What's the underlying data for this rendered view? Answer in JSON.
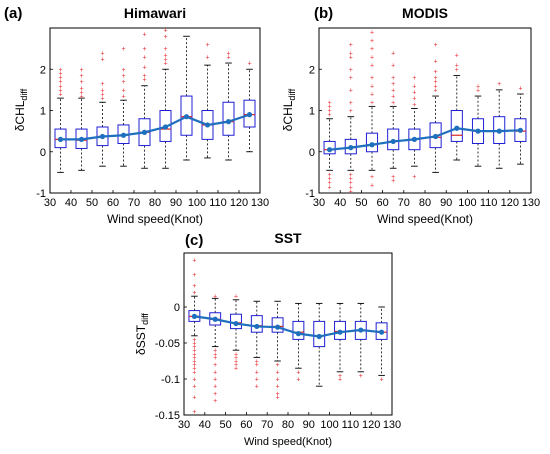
{
  "chart_data": [
    {
      "type": "boxplot",
      "panel_letter": "(a)",
      "title": "Himawari",
      "xlabel": "Wind speed(Knot)",
      "ylabel": {
        "prefix": "δCHL",
        "subscript": "diff"
      },
      "xlim": [
        30,
        130
      ],
      "ylim": [
        -1,
        3
      ],
      "xticks": [
        30,
        40,
        50,
        60,
        70,
        80,
        90,
        100,
        110,
        120,
        130
      ],
      "yticks": [
        -1,
        0,
        1,
        2
      ],
      "colors": {
        "box": "#1f1fd6",
        "median": "#d62728",
        "outlier": "#e8262a",
        "mean_line": "#1f6fbf",
        "whisker": "#000000"
      },
      "boxes": [
        {
          "x": 35,
          "q1": 0.1,
          "median": 0.3,
          "q3": 0.55,
          "low": -0.5,
          "high": 1.3,
          "mean": 0.3,
          "outliers": [
            1.4,
            1.5,
            1.6,
            1.7,
            1.8,
            1.9,
            2.0
          ]
        },
        {
          "x": 45,
          "q1": 0.08,
          "median": 0.28,
          "q3": 0.55,
          "low": -0.45,
          "high": 1.3,
          "mean": 0.3,
          "outliers": [
            1.35,
            1.45,
            1.55,
            1.7,
            1.85,
            2.0
          ]
        },
        {
          "x": 55,
          "q1": 0.15,
          "median": 0.37,
          "q3": 0.6,
          "low": -0.35,
          "high": 1.2,
          "mean": 0.37,
          "outliers": [
            1.3,
            1.4,
            1.5,
            1.65,
            2.25,
            2.4
          ]
        },
        {
          "x": 65,
          "q1": 0.2,
          "median": 0.4,
          "q3": 0.65,
          "low": -0.35,
          "high": 1.25,
          "mean": 0.4,
          "outliers": [
            1.35,
            1.5,
            1.7,
            1.85,
            2.0,
            2.5
          ]
        },
        {
          "x": 75,
          "q1": 0.15,
          "median": 0.47,
          "q3": 0.8,
          "low": -0.4,
          "high": 1.6,
          "mean": 0.47,
          "outliers": [
            1.75,
            1.85,
            2.05,
            2.3,
            2.5,
            2.85
          ]
        },
        {
          "x": 85,
          "q1": 0.25,
          "median": 0.55,
          "q3": 1.0,
          "low": -0.4,
          "high": 2.0,
          "mean": 0.6,
          "outliers": [
            2.15,
            2.25,
            2.35,
            2.5,
            2.8,
            2.95
          ]
        },
        {
          "x": 95,
          "q1": 0.4,
          "median": 0.85,
          "q3": 1.35,
          "low": -0.2,
          "high": 2.8,
          "mean": 0.85,
          "outliers": []
        },
        {
          "x": 105,
          "q1": 0.3,
          "median": 0.65,
          "q3": 1.0,
          "low": -0.15,
          "high": 2.1,
          "mean": 0.65,
          "outliers": [
            2.3,
            2.6
          ]
        },
        {
          "x": 115,
          "q1": 0.4,
          "median": 0.73,
          "q3": 1.2,
          "low": -0.2,
          "high": 2.15,
          "mean": 0.73,
          "outliers": [
            2.3,
            2.4
          ]
        },
        {
          "x": 125,
          "q1": 0.6,
          "median": 0.9,
          "q3": 1.25,
          "low": 0.0,
          "high": 2.0,
          "mean": 0.9,
          "outliers": [
            2.15
          ]
        }
      ]
    },
    {
      "type": "boxplot",
      "panel_letter": "(b)",
      "title": "MODIS",
      "xlabel": "Wind speed(Knot)",
      "ylabel": {
        "prefix": "δCHL",
        "subscript": "diff"
      },
      "xlim": [
        30,
        130
      ],
      "ylim": [
        -1,
        3
      ],
      "xticks": [
        30,
        40,
        50,
        60,
        70,
        80,
        90,
        100,
        110,
        120,
        130
      ],
      "yticks": [
        -1,
        0,
        1,
        2
      ],
      "colors": {
        "box": "#1f1fd6",
        "median": "#d62728",
        "outlier": "#e8262a",
        "mean_line": "#1f6fbf",
        "whisker": "#000000"
      },
      "boxes": [
        {
          "x": 35,
          "q1": -0.05,
          "median": 0.05,
          "q3": 0.25,
          "low": -0.45,
          "high": 0.8,
          "mean": 0.05,
          "outliers": [
            -0.55,
            -0.65,
            -0.75,
            -0.85,
            0.9,
            1.0,
            1.1,
            1.2
          ]
        },
        {
          "x": 45,
          "q1": -0.05,
          "median": 0.1,
          "q3": 0.3,
          "low": -0.45,
          "high": 0.85,
          "mean": 0.1,
          "outliers": [
            -0.55,
            -0.65,
            -0.75,
            -0.85,
            -0.95,
            1.0,
            1.2,
            1.5,
            1.8,
            2.0,
            2.3,
            2.4,
            2.6
          ]
        },
        {
          "x": 55,
          "q1": 0.0,
          "median": 0.17,
          "q3": 0.45,
          "low": -0.45,
          "high": 1.1,
          "mean": 0.17,
          "outliers": [
            -0.6,
            -0.8,
            1.2,
            1.4,
            1.6,
            1.8,
            2.1,
            2.3,
            2.5,
            2.7,
            2.9
          ]
        },
        {
          "x": 65,
          "q1": 0.05,
          "median": 0.25,
          "q3": 0.55,
          "low": -0.4,
          "high": 1.1,
          "mean": 0.25,
          "outliers": [
            -0.6,
            -0.7,
            1.2,
            1.35,
            1.5,
            1.65,
            1.8,
            2.1,
            2.4
          ]
        },
        {
          "x": 75,
          "q1": 0.05,
          "median": 0.3,
          "q3": 0.55,
          "low": -0.35,
          "high": 1.05,
          "mean": 0.3,
          "outliers": [
            -0.6,
            1.15,
            1.3,
            1.45,
            1.6,
            1.8
          ]
        },
        {
          "x": 85,
          "q1": 0.1,
          "median": 0.35,
          "q3": 0.7,
          "low": -0.5,
          "high": 1.35,
          "mean": 0.37,
          "outliers": [
            1.5,
            1.6,
            1.7,
            1.8,
            1.95,
            2.2,
            2.6
          ]
        },
        {
          "x": 95,
          "q1": 0.25,
          "median": 0.4,
          "q3": 1.0,
          "low": -0.2,
          "high": 1.85,
          "mean": 0.57,
          "outliers": [
            2.0,
            2.1,
            2.35
          ]
        },
        {
          "x": 105,
          "q1": 0.2,
          "median": 0.5,
          "q3": 0.8,
          "low": -0.35,
          "high": 1.35,
          "mean": 0.5,
          "outliers": [
            1.5,
            1.6
          ]
        },
        {
          "x": 115,
          "q1": 0.2,
          "median": 0.5,
          "q3": 0.85,
          "low": -0.4,
          "high": 1.5,
          "mean": 0.5,
          "outliers": [
            1.65
          ]
        },
        {
          "x": 125,
          "q1": 0.25,
          "median": 0.5,
          "q3": 0.8,
          "low": -0.3,
          "high": 1.4,
          "mean": 0.52,
          "outliers": [
            1.55
          ]
        }
      ]
    },
    {
      "type": "boxplot",
      "panel_letter": "(c)",
      "title": "SST",
      "xlabel": "Wind speed(Knot)",
      "ylabel": {
        "prefix": "δSST",
        "subscript": "diff"
      },
      "xlim": [
        30,
        130
      ],
      "ylim": [
        -0.15,
        0.075
      ],
      "xticks": [
        30,
        40,
        50,
        60,
        70,
        80,
        90,
        100,
        110,
        120,
        130
      ],
      "xtick_labels": [
        "30",
        "40",
        "50",
        "60",
        "70",
        "80",
        "90",
        "100",
        "110",
        "120",
        "130"
      ],
      "yticks": [
        -0.15,
        -0.1,
        -0.05,
        0
      ],
      "ytick_labels": [
        "-0.15",
        "-0.1",
        "-0.05",
        "0"
      ],
      "colors": {
        "box": "#1f1fd6",
        "median": "#d62728",
        "outlier": "#e8262a",
        "mean_line": "#1f6fbf",
        "whisker": "#000000"
      },
      "boxes": [
        {
          "x": 35,
          "q1": -0.02,
          "median": -0.013,
          "q3": -0.005,
          "low": -0.04,
          "high": 0.015,
          "mean": -0.013,
          "outliers": [
            -0.045,
            -0.05,
            -0.055,
            -0.06,
            -0.065,
            -0.07,
            -0.075,
            -0.08,
            -0.085,
            -0.09,
            -0.1,
            -0.11,
            -0.125,
            -0.145,
            0.02,
            0.03,
            0.045,
            0.065
          ]
        },
        {
          "x": 45,
          "q1": -0.025,
          "median": -0.017,
          "q3": -0.008,
          "low": -0.055,
          "high": 0.012,
          "mean": -0.017,
          "outliers": [
            -0.06,
            -0.065,
            -0.07,
            -0.08,
            -0.09,
            -0.1,
            -0.11,
            -0.12,
            -0.13,
            0.015
          ]
        },
        {
          "x": 55,
          "q1": -0.03,
          "median": -0.022,
          "q3": -0.01,
          "low": -0.06,
          "high": 0.01,
          "mean": -0.023,
          "outliers": [
            -0.065,
            -0.07,
            -0.075,
            -0.08,
            -0.085,
            0.015
          ]
        },
        {
          "x": 65,
          "q1": -0.035,
          "median": -0.026,
          "q3": -0.012,
          "low": -0.07,
          "high": 0.008,
          "mean": -0.027,
          "outliers": [
            -0.075,
            -0.08,
            -0.09,
            -0.1,
            -0.11
          ]
        },
        {
          "x": 75,
          "q1": -0.035,
          "median": -0.027,
          "q3": -0.015,
          "low": -0.075,
          "high": 0.008,
          "mean": -0.028,
          "outliers": [
            -0.08,
            -0.09,
            -0.1,
            -0.11,
            -0.12,
            -0.125
          ]
        },
        {
          "x": 85,
          "q1": -0.045,
          "median": -0.035,
          "q3": -0.02,
          "low": -0.085,
          "high": 0.005,
          "mean": -0.037,
          "outliers": [
            -0.09,
            -0.1
          ]
        },
        {
          "x": 95,
          "q1": -0.055,
          "median": -0.04,
          "q3": -0.02,
          "low": -0.11,
          "high": 0.005,
          "mean": -0.041,
          "outliers": []
        },
        {
          "x": 105,
          "q1": -0.045,
          "median": -0.034,
          "q3": -0.02,
          "low": -0.09,
          "high": 0.005,
          "mean": -0.035,
          "outliers": [
            -0.095,
            -0.1
          ]
        },
        {
          "x": 115,
          "q1": -0.045,
          "median": -0.032,
          "q3": -0.02,
          "low": -0.09,
          "high": 0.005,
          "mean": -0.032,
          "outliers": [
            -0.095
          ]
        },
        {
          "x": 125,
          "q1": -0.045,
          "median": -0.035,
          "q3": -0.022,
          "low": -0.095,
          "high": 0.0,
          "mean": -0.035,
          "outliers": [
            -0.1
          ]
        }
      ]
    }
  ]
}
